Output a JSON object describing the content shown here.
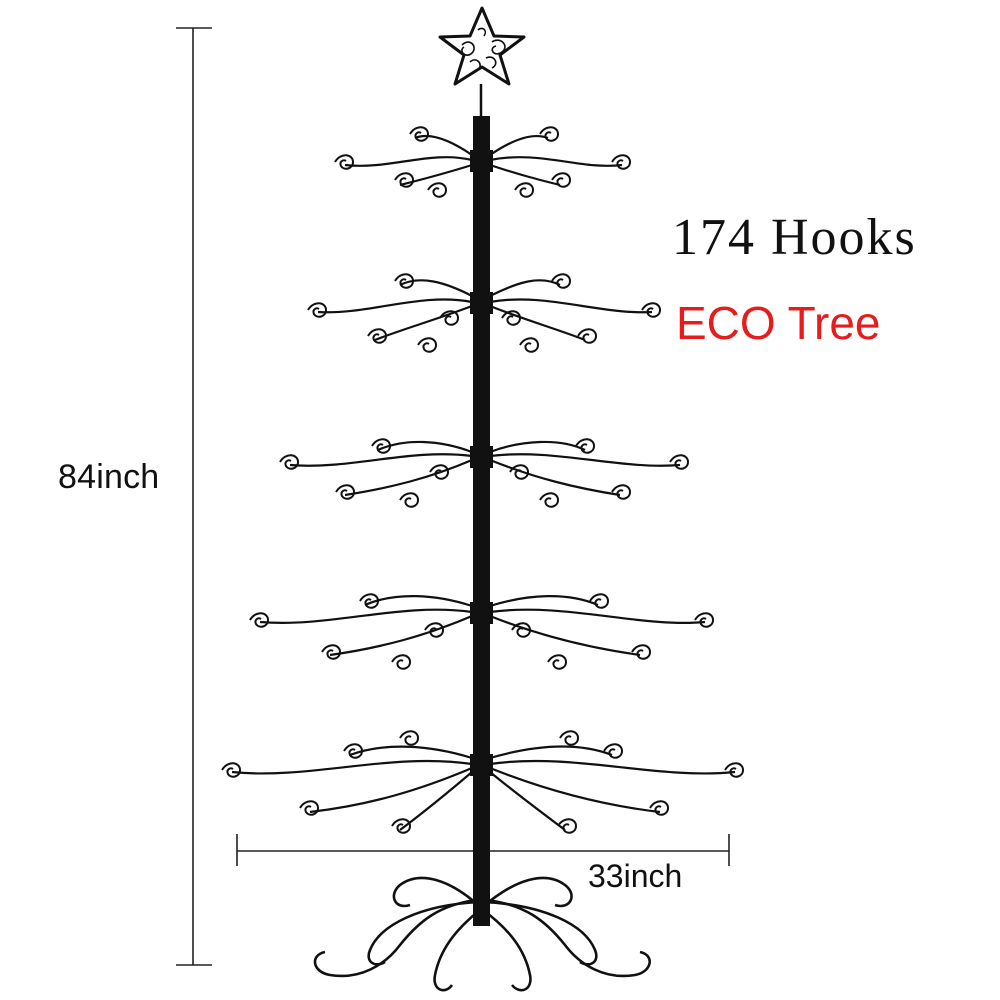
{
  "product": {
    "hooks_label": "174 Hooks",
    "eco_label": "ECO Tree",
    "eco_color": "#e51d1d",
    "ink_color": "#111111"
  },
  "dimensions": {
    "height_label": "84inch",
    "width_label": "33inch"
  },
  "illustration": {
    "subject": "black-metal-ornament-display-tree",
    "topper_icon": "star-topper-icon",
    "tier_count": 5
  }
}
